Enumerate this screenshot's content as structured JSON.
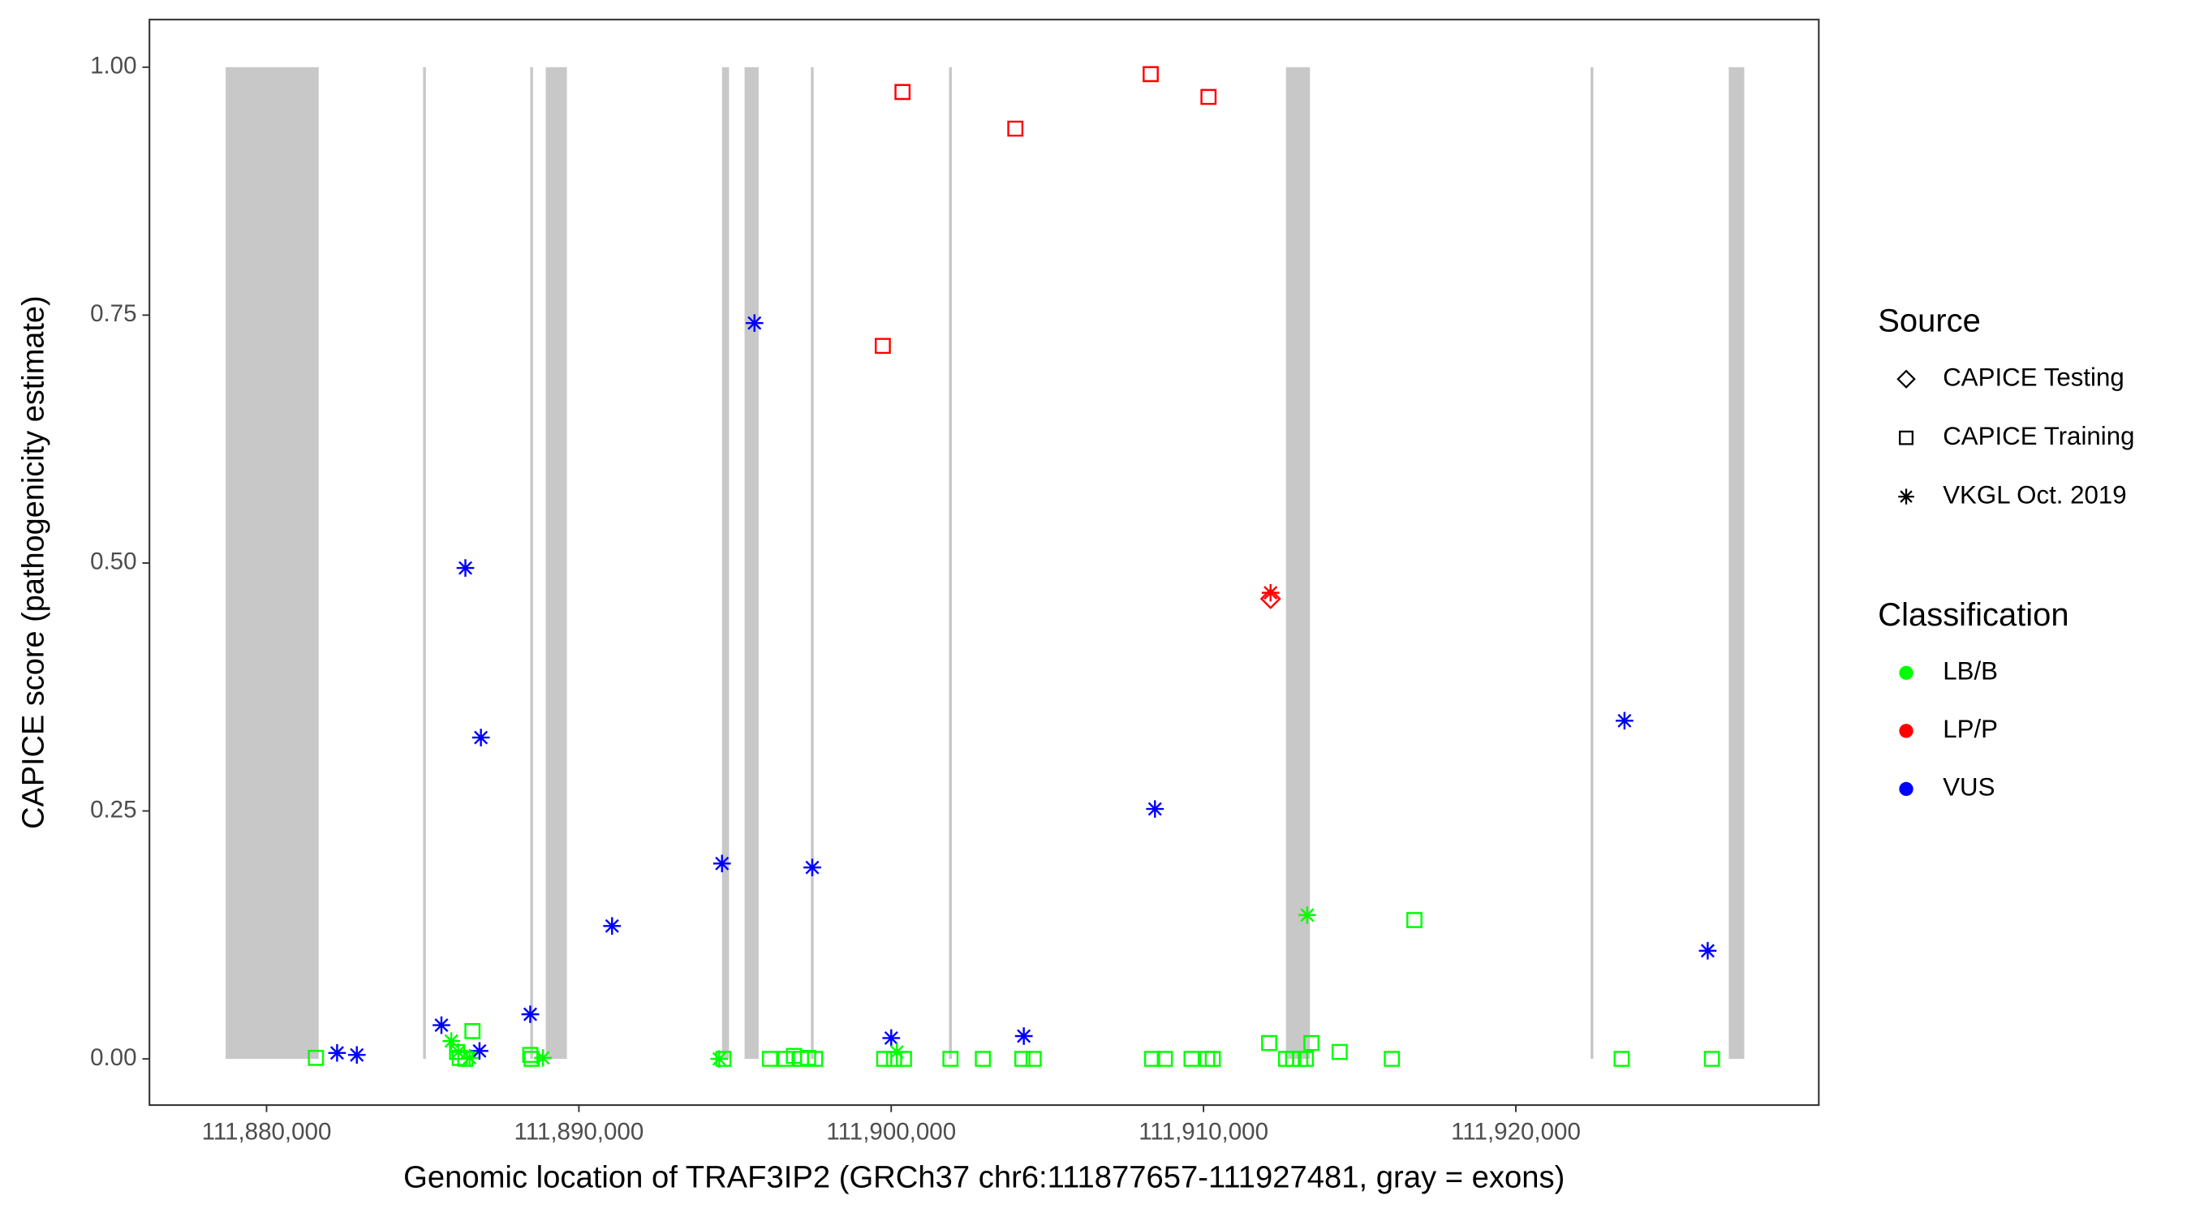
{
  "chart_data": {
    "type": "scatter",
    "xlabel": "Genomic location of TRAF3IP2 (GRCh37 chr6:111877657-111927481, gray = exons)",
    "ylabel": "CAPICE score (pathogenicity estimate)",
    "xlim": [
      111876250,
      111929700
    ],
    "ylim": [
      -0.0466,
      1.048
    ],
    "xticks": [
      {
        "value": 111880000,
        "label": "111,880,000"
      },
      {
        "value": 111890000,
        "label": "111,890,000"
      },
      {
        "value": 111900000,
        "label": "111,900,000"
      },
      {
        "value": 111910000,
        "label": "111,910,000"
      },
      {
        "value": 111920000,
        "label": "111,920,000"
      }
    ],
    "yticks": [
      {
        "value": 0,
        "label": "0.00"
      },
      {
        "value": 0.25,
        "label": "0.25"
      },
      {
        "value": 0.5,
        "label": "0.50"
      },
      {
        "value": 0.75,
        "label": "0.75"
      },
      {
        "value": 1,
        "label": "1.00"
      }
    ],
    "exon_color": "#c8c8c8",
    "exons": [
      [
        111878691,
        111881670
      ],
      [
        111885011,
        111885100
      ],
      [
        111888442,
        111888530
      ],
      [
        111888939,
        111889616
      ],
      [
        111894582,
        111894808
      ],
      [
        111895305,
        111895756
      ],
      [
        111897427,
        111897517
      ],
      [
        111901851,
        111901941
      ],
      [
        111912641,
        111913409
      ],
      [
        111922393,
        111922483
      ],
      [
        111926817,
        111927314
      ]
    ],
    "legend": "right",
    "source_legend": {
      "title": "Source",
      "entries": [
        {
          "name": "CAPICE Testing",
          "shape": "diamond"
        },
        {
          "name": "CAPICE Training",
          "shape": "square"
        },
        {
          "name": "VKGL Oct. 2019",
          "shape": "asterisk"
        }
      ]
    },
    "color_legend": {
      "title": "Classification",
      "entries": [
        {
          "name": "LB/B",
          "color": "#00ff00"
        },
        {
          "name": "LP/P",
          "color": "#ff0000"
        },
        {
          "name": "VUS",
          "color": "#0000ff"
        }
      ]
    },
    "points": [
      {
        "x": 111900363,
        "y": 0.975,
        "source": "CAPICE Training",
        "classification": "LP/P"
      },
      {
        "x": 111903975,
        "y": 0.938,
        "source": "CAPICE Training",
        "classification": "LP/P"
      },
      {
        "x": 111908309,
        "y": 0.993,
        "source": "CAPICE Training",
        "classification": "LP/P"
      },
      {
        "x": 111910160,
        "y": 0.97,
        "source": "CAPICE Training",
        "classification": "LP/P"
      },
      {
        "x": 111899731,
        "y": 0.719,
        "source": "CAPICE Training",
        "classification": "LP/P"
      },
      {
        "x": 111912147,
        "y": 0.464,
        "source": "CAPICE Testing",
        "classification": "LP/P"
      },
      {
        "x": 111912147,
        "y": 0.47,
        "source": "VKGL Oct. 2019",
        "classification": "LP/P"
      },
      {
        "x": 111882258,
        "y": 0.006,
        "source": "VKGL Oct. 2019",
        "classification": "VUS"
      },
      {
        "x": 111882890,
        "y": 0.004,
        "source": "VKGL Oct. 2019",
        "classification": "VUS"
      },
      {
        "x": 111885599,
        "y": 0.034,
        "source": "VKGL Oct. 2019",
        "classification": "VUS"
      },
      {
        "x": 111886366,
        "y": 0.495,
        "source": "VKGL Oct. 2019",
        "classification": "VUS"
      },
      {
        "x": 111886863,
        "y": 0.324,
        "source": "VKGL Oct. 2019",
        "classification": "VUS"
      },
      {
        "x": 111886818,
        "y": 0.008,
        "source": "VKGL Oct. 2019",
        "classification": "VUS"
      },
      {
        "x": 111888443,
        "y": 0.045,
        "source": "VKGL Oct. 2019",
        "classification": "VUS"
      },
      {
        "x": 111891062,
        "y": 0.134,
        "source": "VKGL Oct. 2019",
        "classification": "VUS"
      },
      {
        "x": 111894583,
        "y": 0.197,
        "source": "VKGL Oct. 2019",
        "classification": "VUS"
      },
      {
        "x": 111895622,
        "y": 0.742,
        "source": "VKGL Oct. 2019",
        "classification": "VUS"
      },
      {
        "x": 111897473,
        "y": 0.193,
        "source": "VKGL Oct. 2019",
        "classification": "VUS"
      },
      {
        "x": 111900001,
        "y": 0.021,
        "source": "VKGL Oct. 2019",
        "classification": "VUS"
      },
      {
        "x": 111904246,
        "y": 0.023,
        "source": "VKGL Oct. 2019",
        "classification": "VUS"
      },
      {
        "x": 111908445,
        "y": 0.252,
        "source": "VKGL Oct. 2019",
        "classification": "VUS"
      },
      {
        "x": 111923479,
        "y": 0.341,
        "source": "VKGL Oct. 2019",
        "classification": "VUS"
      },
      {
        "x": 111926143,
        "y": 0.109,
        "source": "VKGL Oct. 2019",
        "classification": "VUS"
      },
      {
        "x": 111885915,
        "y": 0.018,
        "source": "VKGL Oct. 2019",
        "classification": "LB/B"
      },
      {
        "x": 111886140,
        "y": 0.007,
        "source": "VKGL Oct. 2019",
        "classification": "LB/B"
      },
      {
        "x": 111886502,
        "y": 0.001,
        "source": "VKGL Oct. 2019",
        "classification": "LB/B"
      },
      {
        "x": 111888849,
        "y": 0.001,
        "source": "VKGL Oct. 2019",
        "classification": "LB/B"
      },
      {
        "x": 111894493,
        "y": 0,
        "source": "VKGL Oct. 2019",
        "classification": "LB/B"
      },
      {
        "x": 111900182,
        "y": 0.007,
        "source": "VKGL Oct. 2019",
        "classification": "LB/B"
      },
      {
        "x": 111913321,
        "y": 0.145,
        "source": "VKGL Oct. 2019",
        "classification": "LB/B"
      },
      {
        "x": 111881580,
        "y": 0.001,
        "source": "CAPICE Training",
        "classification": "LB/B"
      },
      {
        "x": 111886100,
        "y": 0.007,
        "source": "CAPICE Training",
        "classification": "LB/B"
      },
      {
        "x": 111886185,
        "y": 0.001,
        "source": "CAPICE Training",
        "classification": "LB/B"
      },
      {
        "x": 111886366,
        "y": 0,
        "source": "CAPICE Training",
        "classification": "LB/B"
      },
      {
        "x": 111886592,
        "y": 0.028,
        "source": "CAPICE Training",
        "classification": "LB/B"
      },
      {
        "x": 111888443,
        "y": 0.004,
        "source": "CAPICE Training",
        "classification": "LB/B"
      },
      {
        "x": 111888488,
        "y": 0,
        "source": "CAPICE Training",
        "classification": "LB/B"
      },
      {
        "x": 111894628,
        "y": 0,
        "source": "CAPICE Training",
        "classification": "LB/B"
      },
      {
        "x": 111896119,
        "y": 0,
        "source": "CAPICE Training",
        "classification": "LB/B"
      },
      {
        "x": 111896615,
        "y": 0,
        "source": "CAPICE Training",
        "classification": "LB/B"
      },
      {
        "x": 111896886,
        "y": 0.003,
        "source": "CAPICE Training",
        "classification": "LB/B"
      },
      {
        "x": 111897112,
        "y": 0,
        "source": "CAPICE Training",
        "classification": "LB/B"
      },
      {
        "x": 111897338,
        "y": 0.001,
        "source": "CAPICE Training",
        "classification": "LB/B"
      },
      {
        "x": 111897563,
        "y": 0,
        "source": "CAPICE Training",
        "classification": "LB/B"
      },
      {
        "x": 111899776,
        "y": 0,
        "source": "CAPICE Training",
        "classification": "LB/B"
      },
      {
        "x": 111900092,
        "y": 0,
        "source": "CAPICE Training",
        "classification": "LB/B"
      },
      {
        "x": 111900408,
        "y": 0,
        "source": "CAPICE Training",
        "classification": "LB/B"
      },
      {
        "x": 111901898,
        "y": 0,
        "source": "CAPICE Training",
        "classification": "LB/B"
      },
      {
        "x": 111902936,
        "y": 0,
        "source": "CAPICE Training",
        "classification": "LB/B"
      },
      {
        "x": 111904200,
        "y": 0,
        "source": "CAPICE Training",
        "classification": "LB/B"
      },
      {
        "x": 111904561,
        "y": 0,
        "source": "CAPICE Training",
        "classification": "LB/B"
      },
      {
        "x": 111908354,
        "y": 0,
        "source": "CAPICE Training",
        "classification": "LB/B"
      },
      {
        "x": 111908761,
        "y": 0,
        "source": "CAPICE Training",
        "classification": "LB/B"
      },
      {
        "x": 111909618,
        "y": 0,
        "source": "CAPICE Training",
        "classification": "LB/B"
      },
      {
        "x": 111910115,
        "y": 0,
        "source": "CAPICE Training",
        "classification": "LB/B"
      },
      {
        "x": 111910296,
        "y": 0,
        "source": "CAPICE Training",
        "classification": "LB/B"
      },
      {
        "x": 111912102,
        "y": 0.016,
        "source": "CAPICE Training",
        "classification": "LB/B"
      },
      {
        "x": 111912643,
        "y": 0,
        "source": "CAPICE Training",
        "classification": "LB/B"
      },
      {
        "x": 111912869,
        "y": 0,
        "source": "CAPICE Training",
        "classification": "LB/B"
      },
      {
        "x": 111913095,
        "y": 0,
        "source": "CAPICE Training",
        "classification": "LB/B"
      },
      {
        "x": 111913276,
        "y": 0,
        "source": "CAPICE Training",
        "classification": "LB/B"
      },
      {
        "x": 111913456,
        "y": 0.016,
        "source": "CAPICE Training",
        "classification": "LB/B"
      },
      {
        "x": 111914359,
        "y": 0.007,
        "source": "CAPICE Training",
        "classification": "LB/B"
      },
      {
        "x": 111916030,
        "y": 0,
        "source": "CAPICE Training",
        "classification": "LB/B"
      },
      {
        "x": 111916752,
        "y": 0.14,
        "source": "CAPICE Training",
        "classification": "LB/B"
      },
      {
        "x": 111923389,
        "y": 0,
        "source": "CAPICE Training",
        "classification": "LB/B"
      },
      {
        "x": 111926279,
        "y": 0,
        "source": "CAPICE Training",
        "classification": "LB/B"
      }
    ]
  }
}
